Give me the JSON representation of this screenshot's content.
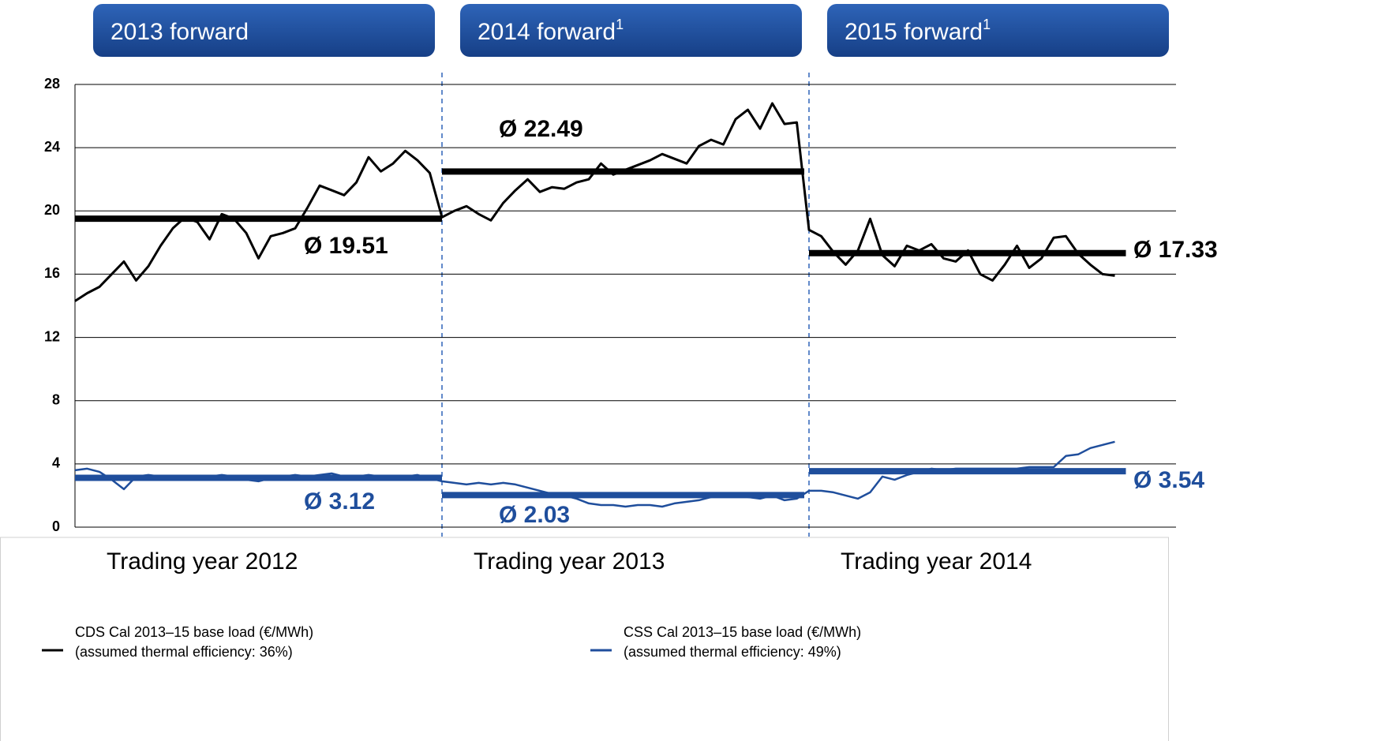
{
  "chart_data": {
    "type": "line",
    "periods": [
      {
        "header": "2013 forward",
        "label": "Trading year 2012"
      },
      {
        "header": "2014 forward",
        "note": "1",
        "label": "Trading year 2013"
      },
      {
        "header": "2015 forward",
        "note": "1",
        "label": "Trading year 2014"
      }
    ],
    "series": [
      {
        "name": "CDS Cal 2013–15 base load (€/MWh)",
        "note": "(assumed thermal efficiency: 36%)",
        "color": "#000000",
        "values": [
          14.3,
          14.8,
          15.2,
          16.0,
          16.8,
          15.6,
          16.5,
          17.8,
          18.9,
          19.6,
          19.3,
          18.2,
          19.8,
          19.5,
          18.6,
          17.0,
          18.4,
          18.6,
          18.9,
          20.2,
          21.6,
          21.3,
          21.0,
          21.8,
          23.4,
          22.5,
          23.0,
          23.8,
          23.2,
          22.4,
          19.6,
          20.0,
          20.3,
          19.8,
          19.4,
          20.5,
          21.3,
          22.0,
          21.2,
          21.5,
          21.4,
          21.8,
          22.0,
          23.0,
          22.3,
          22.6,
          22.9,
          23.2,
          23.6,
          23.3,
          23.0,
          24.1,
          24.5,
          24.2,
          25.8,
          26.4,
          25.2,
          26.8,
          25.5,
          25.6,
          18.8,
          18.4,
          17.4,
          16.6,
          17.5,
          19.5,
          17.2,
          16.5,
          17.8,
          17.5,
          17.9,
          17.0,
          16.8,
          17.5,
          16.0,
          15.6,
          16.6,
          17.8,
          16.4,
          17.0,
          18.3,
          18.4,
          17.3,
          16.6,
          16.0,
          15.9
        ],
        "averages": [
          19.51,
          22.49,
          17.33
        ],
        "average_labels": [
          "Ø 19.51",
          "Ø 22.49",
          "Ø 17.33"
        ]
      },
      {
        "name": "CSS Cal 2013–15 base load (€/MWh)",
        "note": "(assumed thermal efficiency: 49%)",
        "color": "#1f4e9c",
        "values": [
          3.6,
          3.7,
          3.5,
          3.0,
          2.4,
          3.2,
          3.3,
          3.2,
          3.1,
          3.0,
          3.1,
          3.2,
          3.3,
          3.2,
          3.0,
          2.9,
          3.1,
          3.2,
          3.3,
          3.2,
          3.3,
          3.4,
          3.2,
          3.2,
          3.3,
          3.2,
          3.1,
          3.2,
          3.3,
          3.1,
          2.9,
          2.8,
          2.7,
          2.8,
          2.7,
          2.8,
          2.7,
          2.5,
          2.3,
          2.1,
          2.0,
          1.8,
          1.5,
          1.4,
          1.4,
          1.3,
          1.4,
          1.4,
          1.3,
          1.5,
          1.6,
          1.7,
          1.9,
          2.0,
          2.0,
          1.9,
          1.8,
          2.0,
          1.7,
          1.8,
          2.3,
          2.3,
          2.2,
          2.0,
          1.8,
          2.2,
          3.2,
          3.0,
          3.3,
          3.5,
          3.7,
          3.6,
          3.7,
          3.7,
          3.7,
          3.7,
          3.7,
          3.7,
          3.8,
          3.8,
          3.8,
          4.5,
          4.6,
          5.0,
          5.2,
          5.4
        ],
        "averages": [
          3.12,
          2.03,
          3.54
        ],
        "average_labels": [
          "Ø 3.12",
          "Ø 2.03",
          "Ø 3.54"
        ]
      }
    ],
    "ylim": [
      0,
      28
    ],
    "yticks": [
      0,
      4,
      8,
      12,
      16,
      20,
      24,
      28
    ],
    "grid": true
  }
}
